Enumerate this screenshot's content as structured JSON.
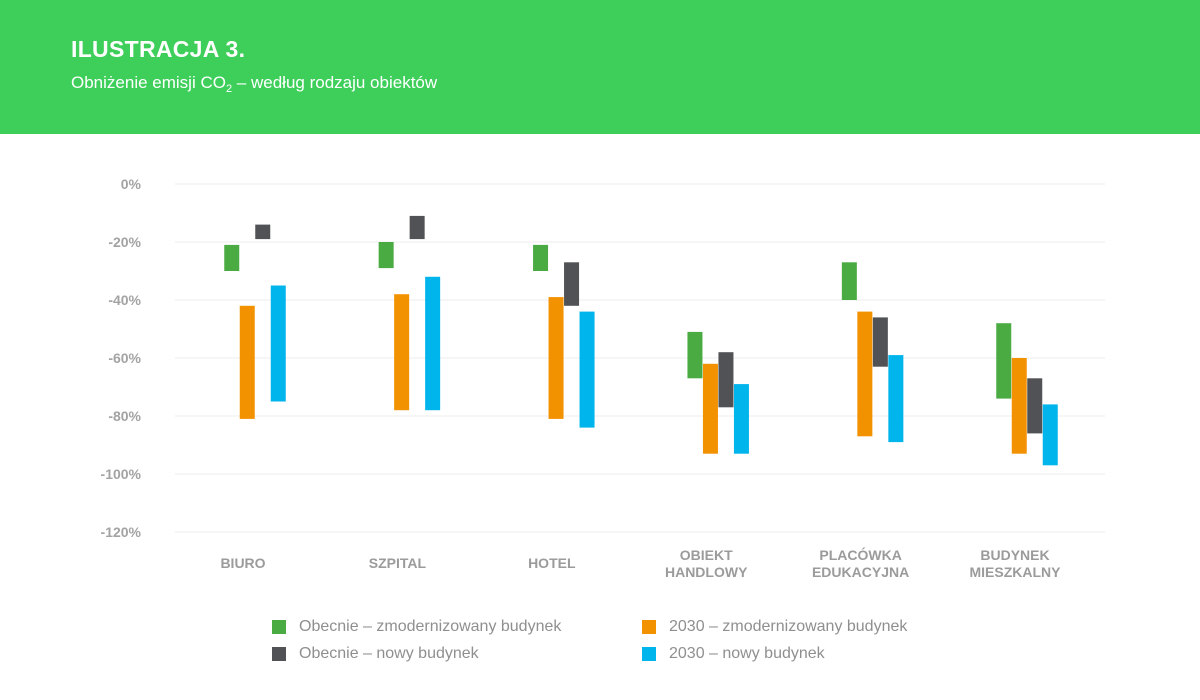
{
  "header": {
    "title": "ILUSTRACJA 3.",
    "subtitle_before": "Obniżenie emisji CO",
    "subtitle_sub": "2",
    "subtitle_after": " – według rodzaju obiektów"
  },
  "chart_data": {
    "type": "bar",
    "subtype": "floating-range",
    "title": "",
    "xlabel": "",
    "ylabel": "",
    "ylim": [
      -120,
      0
    ],
    "yticks": [
      0,
      -20,
      -40,
      -60,
      -80,
      -100,
      -120
    ],
    "ytick_labels": [
      "0%",
      "-20%",
      "-40%",
      "-60%",
      "-80%",
      "-100%",
      "-120%"
    ],
    "grid": true,
    "legend_position": "bottom",
    "categories": [
      [
        "BIURO"
      ],
      [
        "SZPITAL"
      ],
      [
        "HOTEL"
      ],
      [
        "OBIEKT",
        "HANDLOWY"
      ],
      [
        "PLACÓWKA",
        "EDUKACYJNA"
      ],
      [
        "BUDYNEK",
        "MIESZKALNY"
      ]
    ],
    "series": [
      {
        "name": "Obecnie – zmodernizowany budynek",
        "color": "#4aab43",
        "ranges": [
          [
            -21,
            -30
          ],
          [
            -20,
            -29
          ],
          [
            -21,
            -30
          ],
          [
            -51,
            -67
          ],
          [
            -27,
            -40
          ],
          [
            -48,
            -74
          ]
        ]
      },
      {
        "name": "2030 – zmodernizowany budynek",
        "color": "#f39200",
        "ranges": [
          [
            -42,
            -81
          ],
          [
            -38,
            -78
          ],
          [
            -39,
            -81
          ],
          [
            -62,
            -93
          ],
          [
            -44,
            -87
          ],
          [
            -60,
            -93
          ]
        ]
      },
      {
        "name": "Obecnie – nowy budynek",
        "color": "#505255",
        "ranges": [
          [
            -14,
            -19
          ],
          [
            -11,
            -19
          ],
          [
            -27,
            -42
          ],
          [
            -58,
            -77
          ],
          [
            -46,
            -63
          ],
          [
            -67,
            -86
          ]
        ]
      },
      {
        "name": "2030 – nowy budynek",
        "color": "#00b4ec",
        "ranges": [
          [
            -35,
            -75
          ],
          [
            -32,
            -78
          ],
          [
            -44,
            -84
          ],
          [
            -69,
            -93
          ],
          [
            -59,
            -89
          ],
          [
            -76,
            -97
          ]
        ]
      }
    ]
  }
}
